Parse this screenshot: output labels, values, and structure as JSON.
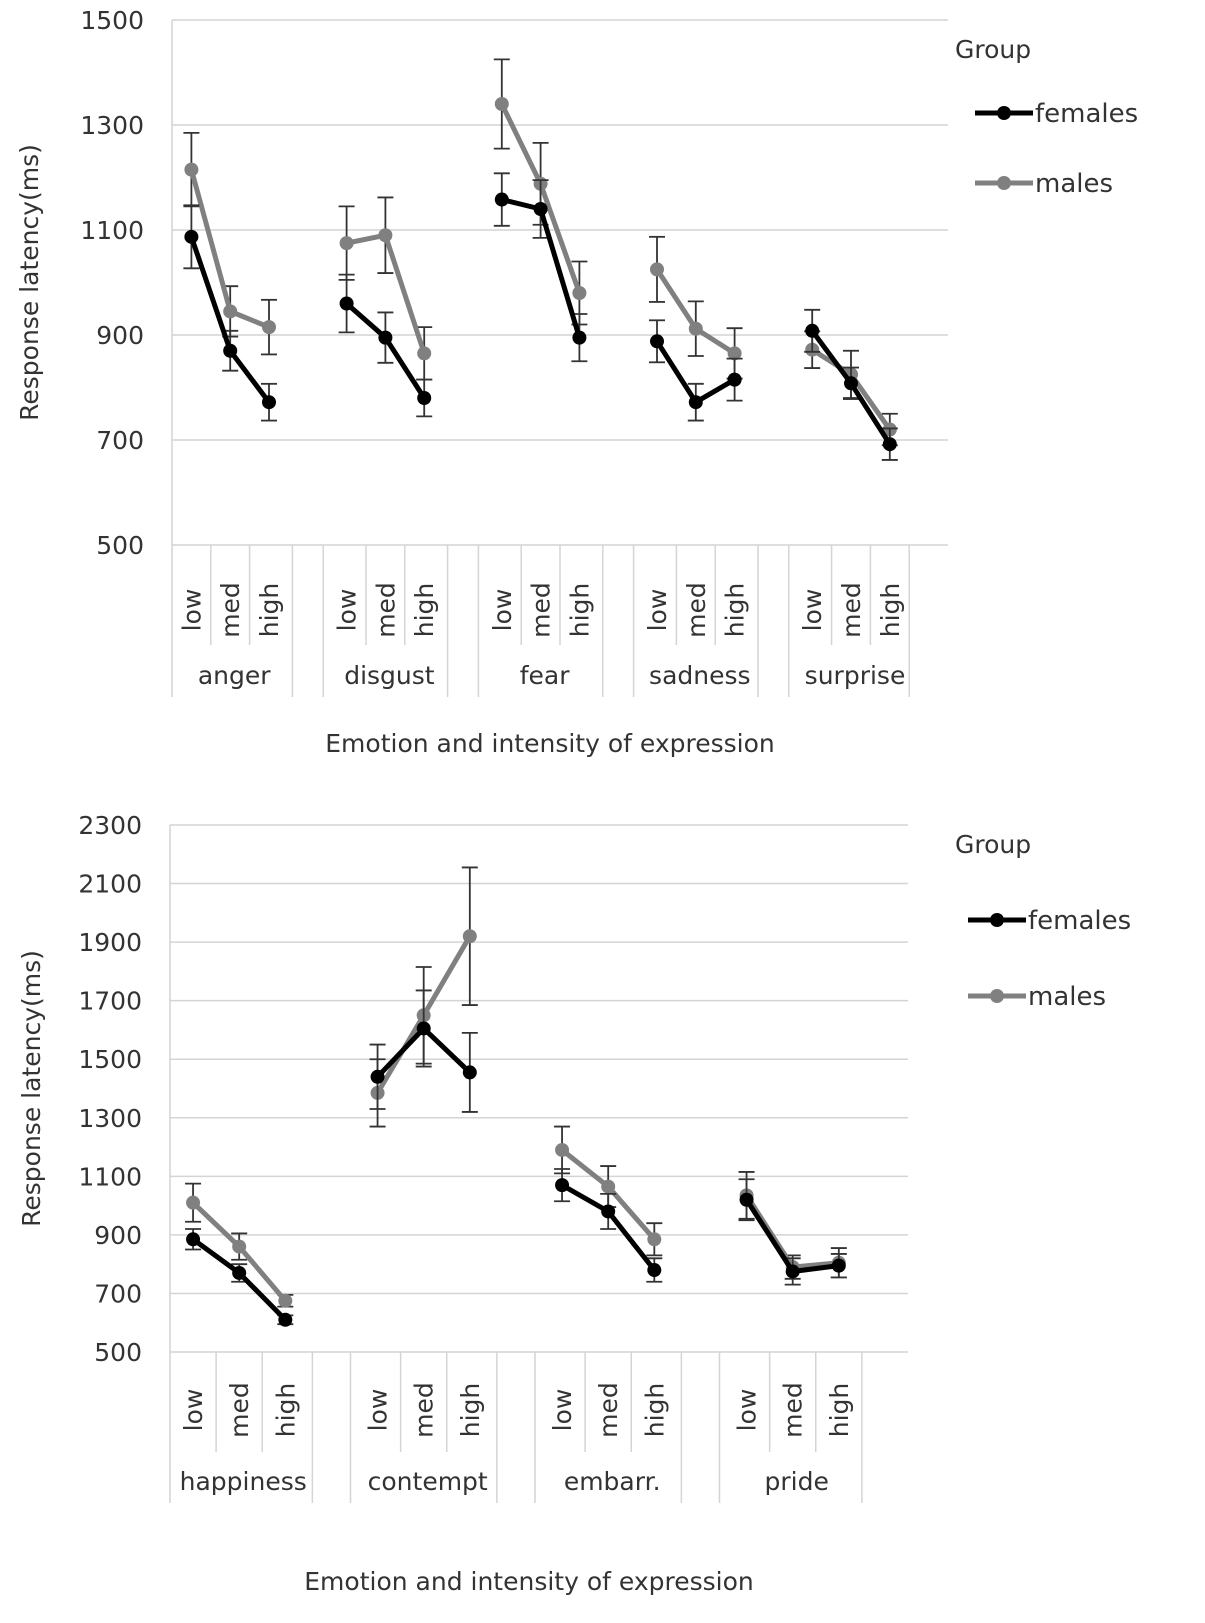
{
  "chart_data": [
    {
      "type": "line",
      "ylabel": "Response latency(ms)",
      "xlabel": "Emotion  and intensity of expression",
      "ylim": [
        500,
        1500
      ],
      "yticks": [
        500,
        700,
        900,
        1100,
        1300,
        1500
      ],
      "grid": true,
      "legend": {
        "title": "Group",
        "position": "right"
      },
      "groups": [
        {
          "name": "anger",
          "levels": [
            "low",
            "med",
            "high"
          ]
        },
        {
          "name": "disgust",
          "levels": [
            "low",
            "med",
            "high"
          ]
        },
        {
          "name": "fear",
          "levels": [
            "low",
            "med",
            "high"
          ]
        },
        {
          "name": "sadness",
          "levels": [
            "low",
            "med",
            "high"
          ]
        },
        {
          "name": "surprise",
          "levels": [
            "low",
            "med",
            "high"
          ]
        }
      ],
      "series": [
        {
          "name": "females",
          "color": "#000000",
          "values": [
            [
              1087,
              870,
              772
            ],
            [
              960,
              895,
              780
            ],
            [
              1158,
              1140,
              895
            ],
            [
              888,
              772,
              815
            ],
            [
              908,
              808,
              692
            ]
          ],
          "errors": [
            [
              60,
              38,
              35
            ],
            [
              55,
              48,
              35
            ],
            [
              50,
              55,
              45
            ],
            [
              40,
              35,
              40
            ],
            [
              40,
              30,
              30
            ]
          ]
        },
        {
          "name": "males",
          "color": "#808080",
          "values": [
            [
              1215,
              945,
              915
            ],
            [
              1075,
              1090,
              865
            ],
            [
              1340,
              1188,
              980
            ],
            [
              1025,
              912,
              865
            ],
            [
              872,
              825,
              720
            ]
          ],
          "errors": [
            [
              70,
              48,
              52
            ],
            [
              70,
              72,
              50
            ],
            [
              85,
              78,
              60
            ],
            [
              62,
              52,
              48
            ],
            [
              35,
              45,
              30
            ]
          ]
        }
      ]
    },
    {
      "type": "line",
      "ylabel": "Response latency(ms)",
      "xlabel": "Emotion  and intensity of expression",
      "ylim": [
        500,
        2300
      ],
      "yticks": [
        500,
        700,
        900,
        1100,
        1300,
        1500,
        1700,
        1900,
        2100,
        2300
      ],
      "grid": true,
      "legend": {
        "title": "Group",
        "position": "right"
      },
      "groups": [
        {
          "name": "happiness",
          "levels": [
            "low",
            "med",
            "high"
          ]
        },
        {
          "name": "contempt",
          "levels": [
            "low",
            "med",
            "high"
          ]
        },
        {
          "name": "embarr.",
          "levels": [
            "low",
            "med",
            "high"
          ]
        },
        {
          "name": "pride",
          "levels": [
            "low",
            "med",
            "high"
          ]
        }
      ],
      "series": [
        {
          "name": "females",
          "color": "#000000",
          "values": [
            [
              885,
              770,
              610
            ],
            [
              1440,
              1605,
              1455
            ],
            [
              1070,
              980,
              780
            ],
            [
              1020,
              775,
              795
            ]
          ],
          "errors": [
            [
              35,
              30,
              15
            ],
            [
              110,
              130,
              135
            ],
            [
              55,
              60,
              40
            ],
            [
              70,
              45,
              40
            ]
          ]
        },
        {
          "name": "males",
          "color": "#808080",
          "values": [
            [
              1010,
              860,
              675
            ],
            [
              1385,
              1650,
              1920
            ],
            [
              1190,
              1065,
              885
            ],
            [
              1035,
              790,
              805
            ]
          ],
          "errors": [
            [
              65,
              45,
              20
            ],
            [
              115,
              165,
              235
            ],
            [
              80,
              70,
              55
            ],
            [
              80,
              40,
              50
            ]
          ]
        }
      ]
    }
  ]
}
